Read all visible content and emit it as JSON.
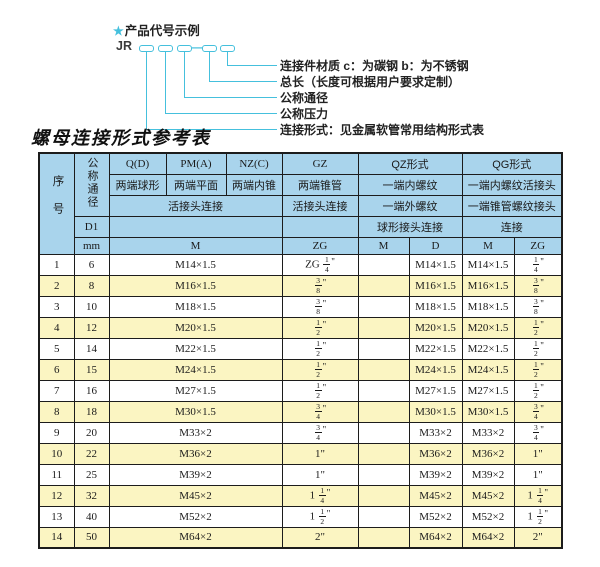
{
  "colors": {
    "accent": "#45c0dd",
    "header_blue": "#a9d4ec",
    "row_yellow": "#fbf5c2",
    "border": "#1c1c1c",
    "text": "#1a1a1a"
  },
  "diagram": {
    "star": "★",
    "title": "产品代号示例",
    "prefix": "JR",
    "separator": "—",
    "labels": [
      "连接件材质  c：为碳钢  b：为不锈钢",
      "总长（长度可根据用户要求定制）",
      "公称通径",
      "公称压力",
      "连接形式：见金属软管常用结构形式表"
    ]
  },
  "table": {
    "title": "螺母连接形式参考表",
    "header": {
      "seq": "序号",
      "dn": "公称通径",
      "d1": "D1",
      "unit": "mm",
      "codes": [
        "Q(D)",
        "PM(A)",
        "NZ(C)",
        "GZ",
        "QZ形式",
        "QG形式"
      ],
      "row2": [
        "两端球形",
        "两端平面",
        "两端内锥",
        "两端锥管",
        "一端内螺纹",
        "一端内螺纹活接头"
      ],
      "row3": [
        "活接头连接",
        "活接头连接",
        "一端外螺纹",
        "一端锥管螺纹接头"
      ],
      "row4": [
        "球形接头连接",
        "连接"
      ],
      "row5": [
        "M",
        "ZG",
        "M",
        "D",
        "M",
        "ZG"
      ]
    },
    "rows": [
      [
        "1",
        "6",
        "M14×1.5",
        "ZG 1/4\"",
        "",
        "M14×1.5",
        "M14×1.5",
        "1/4\""
      ],
      [
        "2",
        "8",
        "M16×1.5",
        "3/8\"",
        "",
        "M16×1.5",
        "M16×1.5",
        "3/8\""
      ],
      [
        "3",
        "10",
        "M18×1.5",
        "3/8\"",
        "",
        "M18×1.5",
        "M18×1.5",
        "3/8\""
      ],
      [
        "4",
        "12",
        "M20×1.5",
        "1/2\"",
        "",
        "M20×1.5",
        "M20×1.5",
        "1/2\""
      ],
      [
        "5",
        "14",
        "M22×1.5",
        "1/2\"",
        "",
        "M22×1.5",
        "M22×1.5",
        "1/2\""
      ],
      [
        "6",
        "15",
        "M24×1.5",
        "1/2\"",
        "",
        "M24×1.5",
        "M24×1.5",
        "1/2\""
      ],
      [
        "7",
        "16",
        "M27×1.5",
        "1/2\"",
        "",
        "M27×1.5",
        "M27×1.5",
        "1/2\""
      ],
      [
        "8",
        "18",
        "M30×1.5",
        "3/4\"",
        "",
        "M30×1.5",
        "M30×1.5",
        "3/4\""
      ],
      [
        "9",
        "20",
        "M33×2",
        "3/4\"",
        "",
        "M33×2",
        "M33×2",
        "3/4\""
      ],
      [
        "10",
        "22",
        "M36×2",
        "1\"",
        "",
        "M36×2",
        "M36×2",
        "1\""
      ],
      [
        "11",
        "25",
        "M39×2",
        "1\"",
        "",
        "M39×2",
        "M39×2",
        "1\""
      ],
      [
        "12",
        "32",
        "M45×2",
        "1 1/4\"",
        "",
        "M45×2",
        "M45×2",
        "1 1/4\""
      ],
      [
        "13",
        "40",
        "M52×2",
        "1 1/2\"",
        "",
        "M52×2",
        "M52×2",
        "1 1/2\""
      ],
      [
        "14",
        "50",
        "M64×2",
        "2\"",
        "",
        "M64×2",
        "M64×2",
        "2\""
      ]
    ]
  }
}
